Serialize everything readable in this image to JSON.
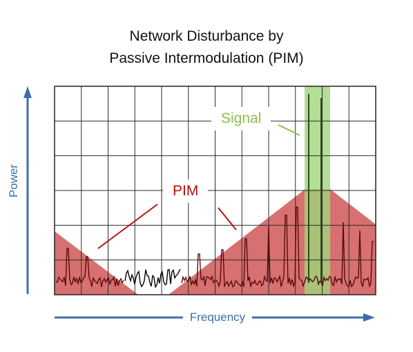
{
  "title": {
    "line1": "Network Disturbance by",
    "line2": "Passive Intermodulation (PIM)"
  },
  "axes": {
    "y_label": "Power",
    "x_label": "Frequency"
  },
  "labels": {
    "pim": "PIM",
    "signal": "Signal"
  },
  "colors": {
    "axis_arrows": "#3e6ea8",
    "pim_region": "#c94040",
    "pim_text": "#b01010",
    "signal_band": "#9fd67a",
    "signal_text": "#8ac048",
    "noise_trace": "#5a0a0a",
    "baseline_trace": "#000000",
    "grid": "#2b2b2b"
  }
}
